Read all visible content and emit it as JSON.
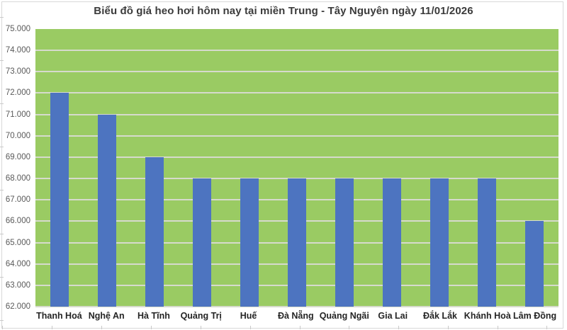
{
  "header": {
    "title": "Biểu đồ giá heo hơi hôm nay tại miền Trung - Tây Nguyên ngày 11/01/2026"
  },
  "colors": {
    "bar": "#4d74c0",
    "plot_background": "#9acb63",
    "gridline": "#d6dacd",
    "y_label_text": "#595959",
    "x_label_text": "#242424",
    "title_text": "#3b3b3b",
    "frame_border": "#d9d9d9"
  },
  "chart_data": {
    "type": "bar",
    "title": "Biểu đồ giá heo hơi hôm nay tại miền Trung - Tây Nguyên ngày 11/01/2026",
    "categories": [
      "Thanh Hoá",
      "Nghệ An",
      "Hà Tĩnh",
      "Quảng Trị",
      "Huế",
      "Đà Nẵng",
      "Quảng Ngãi",
      "Gia Lai",
      "Đắk Lắk",
      "Khánh Hoà",
      "Lâm Đồng"
    ],
    "values": [
      72000,
      71000,
      69000,
      68000,
      68000,
      68000,
      68000,
      68000,
      68000,
      68000,
      66000
    ],
    "xlabel": "",
    "ylabel": "",
    "ylim": [
      62000,
      75000
    ],
    "ytick_step": 1000,
    "ytick_labels": [
      "75.000",
      "74.000",
      "73.000",
      "72.000",
      "71.000",
      "70.000",
      "69.000",
      "68.000",
      "67.000",
      "66.000",
      "65.000",
      "64.000",
      "63.000",
      "62.000"
    ],
    "grid": true,
    "legend": "none",
    "plot_bg": "#9acb63",
    "bar_color": "#4d74c0"
  }
}
